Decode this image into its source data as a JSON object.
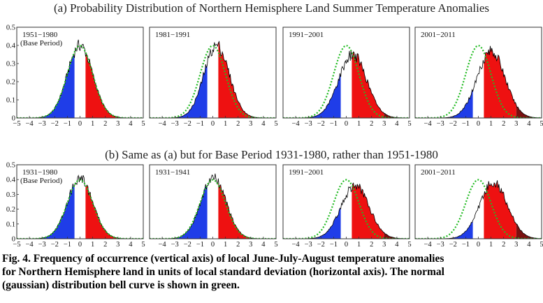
{
  "figure": {
    "row_titles": [
      "(a) Probability Distribution of Northern Hemisphere Land Summer Temperature Anomalies",
      "(b) Same as (a) but for Base Period 1931-1980, rather than 1951-1980"
    ],
    "caption_lines": [
      "Fig. 4.  Frequency of occurrence (vertical axis) of local June-July-August temperature anomalies",
      "for Northern Hemisphere land in units of local standard deviation (horizontal axis).   The normal",
      "(gaussian) distribution bell curve is shown in green."
    ],
    "colors": {
      "cold": "#1f3de8",
      "neutral": "#ffffff",
      "hot": "#ee1111",
      "extreme_hot": "#7a1010",
      "normal_curve": "#22bb22",
      "observed_curve": "#000000"
    }
  },
  "chart_data": [
    {
      "type": "area",
      "row": "a",
      "label": "1951−1980",
      "sublabel": "(Base Period)",
      "mean_sd": 0.0,
      "sd_scale": 1.0,
      "peak": 0.4,
      "xlim": [
        -5,
        5
      ],
      "ylim": [
        0,
        0.5
      ],
      "xticks": [
        -5,
        -4,
        -3,
        -2,
        -1,
        0,
        1,
        2,
        3,
        4,
        5
      ],
      "yticks": [
        0,
        0.1,
        0.2,
        0.3,
        0.4,
        0.5
      ],
      "normal_curve": true
    },
    {
      "type": "area",
      "row": "a",
      "label": "1981−1991",
      "sublabel": "",
      "mean_sd": 0.3,
      "sd_scale": 1.0,
      "peak": 0.4,
      "xlim": [
        -5,
        5
      ],
      "ylim": [
        0,
        0.5
      ],
      "xticks": [
        -4,
        -3,
        -2,
        -1,
        0,
        1,
        2,
        3,
        4,
        5
      ],
      "normal_curve": true
    },
    {
      "type": "area",
      "row": "a",
      "label": "1991−2001",
      "sublabel": "",
      "mean_sd": 0.5,
      "sd_scale": 1.1,
      "peak": 0.35,
      "xlim": [
        -5,
        5
      ],
      "ylim": [
        0,
        0.5
      ],
      "xticks": [
        -4,
        -3,
        -2,
        -1,
        0,
        1,
        2,
        3,
        4,
        5
      ],
      "normal_curve": true
    },
    {
      "type": "area",
      "row": "a",
      "label": "2001−2011",
      "sublabel": "",
      "mean_sd": 1.0,
      "sd_scale": 1.1,
      "peak": 0.37,
      "xlim": [
        -5,
        5
      ],
      "ylim": [
        0,
        0.5
      ],
      "xticks": [
        -4,
        -3,
        -2,
        -1,
        0,
        1,
        2,
        3,
        4,
        5
      ],
      "normal_curve": true
    },
    {
      "type": "area",
      "row": "b",
      "label": "1931−1980",
      "sublabel": "(Base Period)",
      "mean_sd": 0.0,
      "sd_scale": 1.0,
      "peak": 0.41,
      "xlim": [
        -5,
        5
      ],
      "ylim": [
        0,
        0.5
      ],
      "xticks": [
        -5,
        -4,
        -3,
        -2,
        -1,
        0,
        1,
        2,
        3,
        4,
        5
      ],
      "yticks": [
        0,
        0.1,
        0.2,
        0.3,
        0.4,
        0.5
      ],
      "normal_curve": true
    },
    {
      "type": "area",
      "row": "b",
      "label": "1931−1941",
      "sublabel": "",
      "mean_sd": 0.05,
      "sd_scale": 1.0,
      "peak": 0.41,
      "xlim": [
        -5,
        5
      ],
      "ylim": [
        0,
        0.5
      ],
      "xticks": [
        -4,
        -3,
        -2,
        -1,
        0,
        1,
        2,
        3,
        4,
        5
      ],
      "normal_curve": true
    },
    {
      "type": "area",
      "row": "b",
      "label": "1991−2001",
      "sublabel": "",
      "mean_sd": 0.7,
      "sd_scale": 1.1,
      "peak": 0.36,
      "xlim": [
        -5,
        5
      ],
      "ylim": [
        0,
        0.5
      ],
      "xticks": [
        -4,
        -3,
        -2,
        -1,
        0,
        1,
        2,
        3,
        4,
        5
      ],
      "normal_curve": true
    },
    {
      "type": "area",
      "row": "b",
      "label": "2001−2011",
      "sublabel": "",
      "mean_sd": 1.2,
      "sd_scale": 1.1,
      "peak": 0.38,
      "xlim": [
        -5,
        5
      ],
      "ylim": [
        0,
        0.5
      ],
      "xticks": [
        -4,
        -3,
        -2,
        -1,
        0,
        1,
        2,
        3,
        4,
        5
      ],
      "normal_curve": true
    }
  ]
}
